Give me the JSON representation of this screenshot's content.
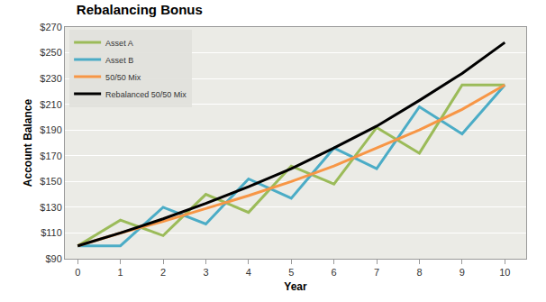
{
  "chart_data": {
    "type": "line",
    "title": "Rebalancing Bonus",
    "x_label": "Year",
    "y_label": "Account Balance",
    "x": [
      0,
      1,
      2,
      3,
      4,
      5,
      6,
      7,
      8,
      9,
      10
    ],
    "series": [
      {
        "name": "Asset A",
        "color": "#9bbb59",
        "values": [
          100,
          120,
          108,
          140,
          126,
          162,
          148,
          192,
          172,
          225,
          225
        ]
      },
      {
        "name": "Asset B",
        "color": "#4bacc6",
        "values": [
          100,
          100,
          130,
          117,
          152,
          137,
          176,
          160,
          208,
          187,
          225
        ]
      },
      {
        "name": "50/50 Mix",
        "color": "#f79646",
        "values": [
          100,
          110,
          119,
          129,
          139,
          150,
          162,
          176,
          190,
          206,
          225
        ]
      },
      {
        "name": "Rebalanced 50/50 Mix",
        "color": "#000000",
        "values": [
          100,
          110,
          121,
          133,
          146,
          160,
          176,
          193,
          213,
          234,
          258
        ]
      }
    ],
    "xlim": [
      -0.3,
      10.5
    ],
    "xticks": [
      0,
      1,
      2,
      3,
      4,
      5,
      6,
      7,
      8,
      9,
      10
    ],
    "ylim": [
      90,
      270
    ],
    "yticks": [
      {
        "value": 90,
        "label": "$90"
      },
      {
        "value": 110,
        "label": "$110"
      },
      {
        "value": 130,
        "label": "$130"
      },
      {
        "value": 150,
        "label": "$150"
      },
      {
        "value": 170,
        "label": "$170"
      },
      {
        "value": 190,
        "label": "$190"
      },
      {
        "value": 210,
        "label": "$210"
      },
      {
        "value": 230,
        "label": "$230"
      },
      {
        "value": 250,
        "label": "$250"
      },
      {
        "value": 270,
        "label": "$270"
      }
    ],
    "grid": true,
    "legend": "top left",
    "line_style": "solid"
  }
}
